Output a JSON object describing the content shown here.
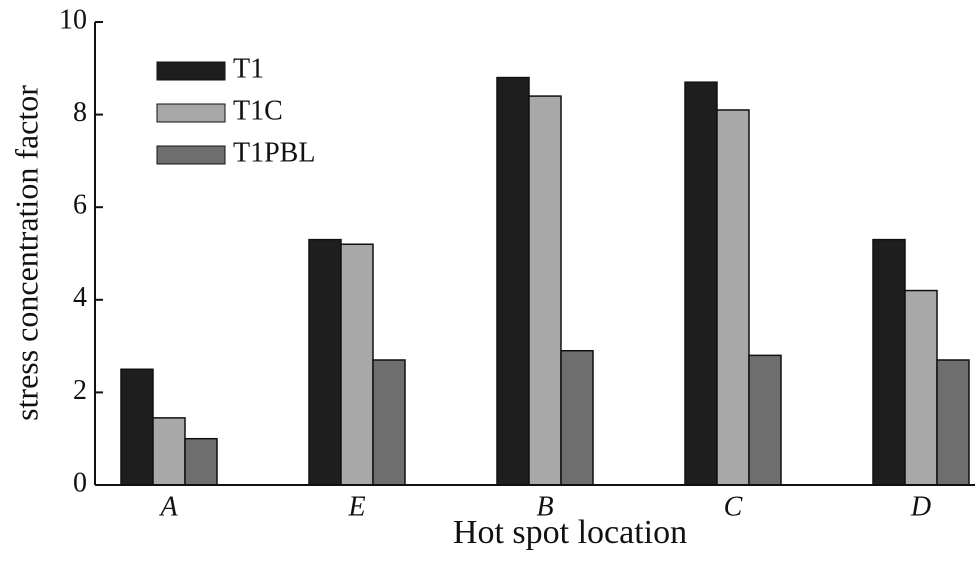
{
  "chart_data": {
    "type": "bar",
    "x_label": "Hot spot location",
    "y_label": "stress concentration factor",
    "categories": [
      "A",
      "E",
      "B",
      "C",
      "D"
    ],
    "series": [
      {
        "name": "T1",
        "color": "#1e1e1e",
        "values": [
          2.5,
          5.3,
          8.8,
          8.7,
          5.3
        ]
      },
      {
        "name": "T1C",
        "color": "#a8a8a8",
        "values": [
          1.45,
          5.2,
          8.4,
          8.1,
          4.2
        ]
      },
      {
        "name": "T1PBL",
        "color": "#6e6e6e",
        "values": [
          1.0,
          2.7,
          2.9,
          2.8,
          2.7
        ]
      }
    ],
    "ylim": [
      0,
      10
    ],
    "yticks": [
      0,
      2,
      4,
      6,
      8,
      10
    ],
    "legend": "upper-left"
  }
}
